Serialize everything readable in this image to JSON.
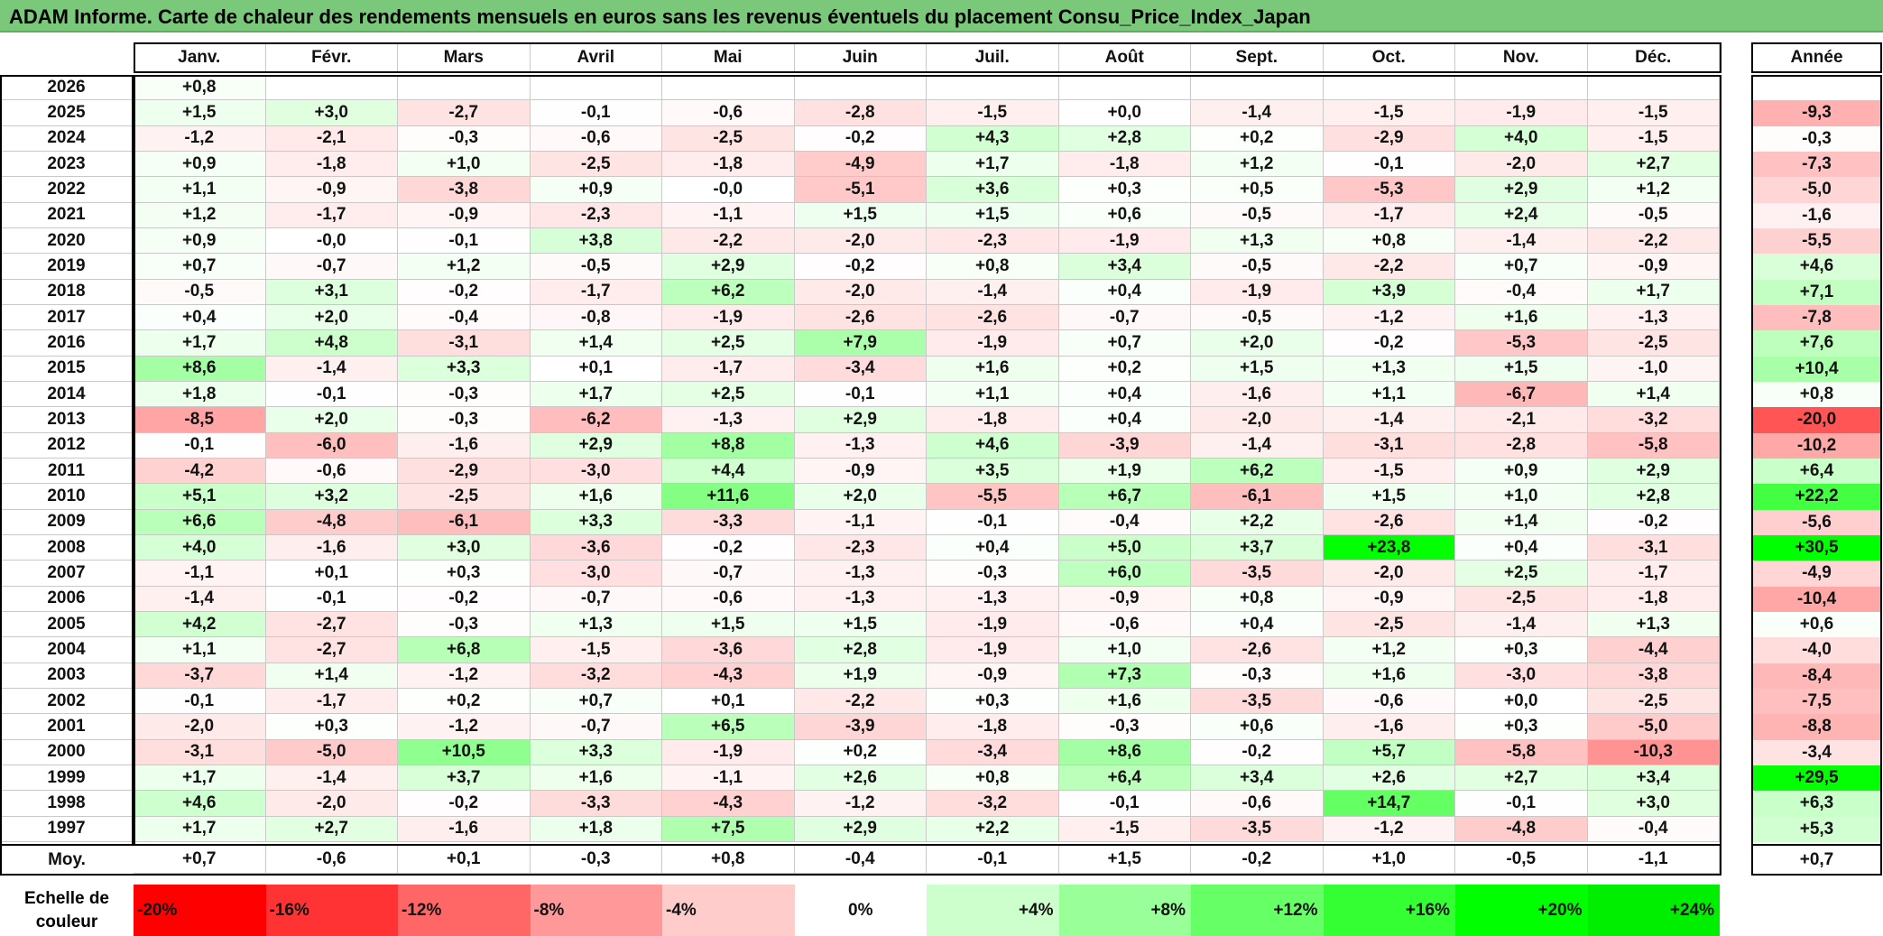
{
  "title": "ADAM Informe. Carte de chaleur des rendements mensuels en euros sans les revenus éventuels du placement Consu_Price_Index_Japan",
  "chart_data": {
    "type": "heatmap",
    "title": "ADAM Informe. Carte de chaleur des rendements mensuels en euros sans les revenus éventuels du placement Consu_Price_Index_Japan",
    "months": [
      "Janv.",
      "Févr.",
      "Mars",
      "Avril",
      "Mai",
      "Juin",
      "Juil.",
      "Août",
      "Sept.",
      "Oct.",
      "Nov.",
      "Déc."
    ],
    "year_header": "Année",
    "rows": [
      {
        "year": "2026",
        "months": [
          "+0,8",
          "",
          "",
          "",
          "",
          "",
          "",
          "",
          "",
          "",
          "",
          ""
        ],
        "annual": ""
      },
      {
        "year": "2025",
        "months": [
          "+1,5",
          "+3,0",
          "-2,7",
          "-0,1",
          "-0,6",
          "-2,8",
          "-1,5",
          "+0,0",
          "-1,4",
          "-1,5",
          "-1,9",
          "-1,5"
        ],
        "annual": "-9,3"
      },
      {
        "year": "2024",
        "months": [
          "-1,2",
          "-2,1",
          "-0,3",
          "-0,6",
          "-2,5",
          "-0,2",
          "+4,3",
          "+2,8",
          "+0,2",
          "-2,9",
          "+4,0",
          "-1,5"
        ],
        "annual": "-0,3"
      },
      {
        "year": "2023",
        "months": [
          "+0,9",
          "-1,8",
          "+1,0",
          "-2,5",
          "-1,8",
          "-4,9",
          "+1,7",
          "-1,8",
          "+1,2",
          "-0,1",
          "-2,0",
          "+2,7"
        ],
        "annual": "-7,3"
      },
      {
        "year": "2022",
        "months": [
          "+1,1",
          "-0,9",
          "-3,8",
          "+0,9",
          "-0,0",
          "-5,1",
          "+3,6",
          "+0,3",
          "+0,5",
          "-5,3",
          "+2,9",
          "+1,2"
        ],
        "annual": "-5,0"
      },
      {
        "year": "2021",
        "months": [
          "+1,2",
          "-1,7",
          "-0,9",
          "-2,3",
          "-1,1",
          "+1,5",
          "+1,5",
          "+0,6",
          "-0,5",
          "-1,7",
          "+2,4",
          "-0,5"
        ],
        "annual": "-1,6"
      },
      {
        "year": "2020",
        "months": [
          "+0,9",
          "-0,0",
          "-0,1",
          "+3,8",
          "-2,2",
          "-2,0",
          "-2,3",
          "-1,9",
          "+1,3",
          "+0,8",
          "-1,4",
          "-2,2"
        ],
        "annual": "-5,5"
      },
      {
        "year": "2019",
        "months": [
          "+0,7",
          "-0,7",
          "+1,2",
          "-0,5",
          "+2,9",
          "-0,2",
          "+0,8",
          "+3,4",
          "-0,5",
          "-2,2",
          "+0,7",
          "-0,9"
        ],
        "annual": "+4,6"
      },
      {
        "year": "2018",
        "months": [
          "-0,5",
          "+3,1",
          "-0,2",
          "-1,7",
          "+6,2",
          "-2,0",
          "-1,4",
          "+0,4",
          "-1,9",
          "+3,9",
          "-0,4",
          "+1,7"
        ],
        "annual": "+7,1"
      },
      {
        "year": "2017",
        "months": [
          "+0,4",
          "+2,0",
          "-0,4",
          "-0,8",
          "-1,9",
          "-2,6",
          "-2,6",
          "-0,7",
          "-0,5",
          "-1,2",
          "+1,6",
          "-1,3"
        ],
        "annual": "-7,8"
      },
      {
        "year": "2016",
        "months": [
          "+1,7",
          "+4,8",
          "-3,1",
          "+1,4",
          "+2,5",
          "+7,9",
          "-1,9",
          "+0,7",
          "+2,0",
          "-0,2",
          "-5,3",
          "-2,5"
        ],
        "annual": "+7,6"
      },
      {
        "year": "2015",
        "months": [
          "+8,6",
          "-1,4",
          "+3,3",
          "+0,1",
          "-1,7",
          "-3,4",
          "+1,6",
          "+0,2",
          "+1,5",
          "+1,3",
          "+1,5",
          "-1,0"
        ],
        "annual": "+10,4"
      },
      {
        "year": "2014",
        "months": [
          "+1,8",
          "-0,1",
          "-0,3",
          "+1,7",
          "+2,5",
          "-0,1",
          "+1,1",
          "+0,4",
          "-1,6",
          "+1,1",
          "-6,7",
          "+1,4"
        ],
        "annual": "+0,8"
      },
      {
        "year": "2013",
        "months": [
          "-8,5",
          "+2,0",
          "-0,3",
          "-6,2",
          "-1,3",
          "+2,9",
          "-1,8",
          "+0,4",
          "-2,0",
          "-1,4",
          "-2,1",
          "-3,2"
        ],
        "annual": "-20,0"
      },
      {
        "year": "2012",
        "months": [
          "-0,1",
          "-6,0",
          "-1,6",
          "+2,9",
          "+8,8",
          "-1,3",
          "+4,6",
          "-3,9",
          "-1,4",
          "-3,1",
          "-2,8",
          "-5,8"
        ],
        "annual": "-10,2"
      },
      {
        "year": "2011",
        "months": [
          "-4,2",
          "-0,6",
          "-2,9",
          "-3,0",
          "+4,4",
          "-0,9",
          "+3,5",
          "+1,9",
          "+6,2",
          "-1,5",
          "+0,9",
          "+2,9"
        ],
        "annual": "+6,4"
      },
      {
        "year": "2010",
        "months": [
          "+5,1",
          "+3,2",
          "-2,5",
          "+1,6",
          "+11,6",
          "+2,0",
          "-5,5",
          "+6,7",
          "-6,1",
          "+1,5",
          "+1,0",
          "+2,8"
        ],
        "annual": "+22,2"
      },
      {
        "year": "2009",
        "months": [
          "+6,6",
          "-4,8",
          "-6,1",
          "+3,3",
          "-3,3",
          "-1,1",
          "-0,1",
          "-0,4",
          "+2,2",
          "-2,6",
          "+1,4",
          "-0,2"
        ],
        "annual": "-5,6"
      },
      {
        "year": "2008",
        "months": [
          "+4,0",
          "-1,6",
          "+3,0",
          "-3,6",
          "-0,2",
          "-2,3",
          "+0,4",
          "+5,0",
          "+3,7",
          "+23,8",
          "+0,4",
          "-3,1"
        ],
        "annual": "+30,5"
      },
      {
        "year": "2007",
        "months": [
          "-1,1",
          "+0,1",
          "+0,3",
          "-3,0",
          "-0,7",
          "-1,3",
          "-0,3",
          "+6,0",
          "-3,5",
          "-2,0",
          "+2,5",
          "-1,7"
        ],
        "annual": "-4,9"
      },
      {
        "year": "2006",
        "months": [
          "-1,4",
          "-0,1",
          "-0,2",
          "-0,7",
          "-0,6",
          "-1,3",
          "-1,3",
          "-0,9",
          "+0,8",
          "-0,9",
          "-2,5",
          "-1,8"
        ],
        "annual": "-10,4"
      },
      {
        "year": "2005",
        "months": [
          "+4,2",
          "-2,7",
          "-0,3",
          "+1,3",
          "+1,5",
          "+1,5",
          "-1,9",
          "-0,6",
          "+0,4",
          "-2,5",
          "-1,4",
          "+1,3"
        ],
        "annual": "+0,6"
      },
      {
        "year": "2004",
        "months": [
          "+1,1",
          "-2,7",
          "+6,8",
          "-1,5",
          "-3,6",
          "+2,8",
          "-1,9",
          "+1,0",
          "-2,6",
          "+1,2",
          "+0,3",
          "-4,4"
        ],
        "annual": "-4,0"
      },
      {
        "year": "2003",
        "months": [
          "-3,7",
          "+1,4",
          "-1,2",
          "-3,2",
          "-4,3",
          "+1,9",
          "-0,9",
          "+7,3",
          "-0,3",
          "+1,6",
          "-3,0",
          "-3,8"
        ],
        "annual": "-8,4"
      },
      {
        "year": "2002",
        "months": [
          "-0,1",
          "-1,7",
          "+0,2",
          "+0,7",
          "+0,1",
          "-2,2",
          "+0,3",
          "+1,6",
          "-3,5",
          "-0,6",
          "+0,0",
          "-2,5"
        ],
        "annual": "-7,5"
      },
      {
        "year": "2001",
        "months": [
          "-2,0",
          "+0,3",
          "-1,2",
          "-0,7",
          "+6,5",
          "-3,9",
          "-1,8",
          "-0,3",
          "+0,6",
          "-1,6",
          "+0,3",
          "-5,0"
        ],
        "annual": "-8,8"
      },
      {
        "year": "2000",
        "months": [
          "-3,1",
          "-5,0",
          "+10,5",
          "+3,3",
          "-1,9",
          "+0,2",
          "-3,4",
          "+8,6",
          "-0,2",
          "+5,7",
          "-5,8",
          "-10,3"
        ],
        "annual": "-3,4"
      },
      {
        "year": "1999",
        "months": [
          "+1,7",
          "-1,4",
          "+3,7",
          "+1,6",
          "-1,1",
          "+2,6",
          "+0,8",
          "+6,4",
          "+3,4",
          "+2,6",
          "+2,7",
          "+3,4"
        ],
        "annual": "+29,5"
      },
      {
        "year": "1998",
        "months": [
          "+4,6",
          "-2,0",
          "-0,2",
          "-3,3",
          "-4,3",
          "-1,2",
          "-3,2",
          "-0,1",
          "-0,6",
          "+14,7",
          "-0,1",
          "+3,0"
        ],
        "annual": "+6,3"
      },
      {
        "year": "1997",
        "months": [
          "+1,7",
          "+2,7",
          "-1,6",
          "+1,8",
          "+7,5",
          "+2,9",
          "+2,2",
          "-1,5",
          "-3,5",
          "-1,2",
          "-4,8",
          "-0,4"
        ],
        "annual": "+5,3"
      }
    ],
    "average": {
      "label": "Moy.",
      "months": [
        "+0,7",
        "-0,6",
        "+0,1",
        "-0,3",
        "+0,8",
        "-0,4",
        "-0,1",
        "+1,5",
        "-0,2",
        "+1,0",
        "-0,5",
        "-1,1"
      ],
      "annual": "+0,7"
    },
    "color_scale": {
      "title": "Echelle de couleur",
      "stops": [
        "-20%",
        "-16%",
        "-12%",
        "-8%",
        "-4%",
        "0%",
        "+4%",
        "+8%",
        "+12%",
        "+16%",
        "+20%",
        "+24%"
      ],
      "colors": [
        "#ff0000",
        "#ff3333",
        "#ff6666",
        "#ff9999",
        "#ffcccc",
        "#ffffff",
        "#ccffcc",
        "#99ff99",
        "#66ff66",
        "#33ff33",
        "#00ff00",
        "#00ee00"
      ]
    },
    "colors": {
      "negative_full": "#ff0000",
      "positive_full": "#00ff00",
      "title_bar": "#7ac87a"
    }
  }
}
